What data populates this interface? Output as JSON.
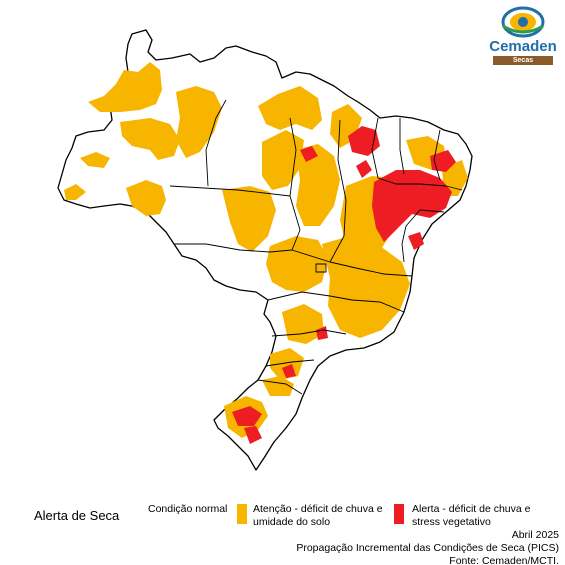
{
  "logo": {
    "name": "Cemaden",
    "subtitle": "Secas"
  },
  "legend": {
    "title": "Alerta de Seca",
    "items": [
      {
        "label": "Condição normal",
        "color": "#ffffff"
      },
      {
        "label": "Atenção - déficit de chuva e umidade do solo",
        "color": "#f7b500"
      },
      {
        "label": "Alerta - déficit de chuva e stress vegetativo",
        "color": "#ee1d23"
      }
    ]
  },
  "info": {
    "date": "Abril 2025",
    "product": "Propagação Incremental das Condições de Seca (PICS)",
    "source": "Fonte: Cemaden/MCTI."
  },
  "map": {
    "country": "Brasil",
    "border_color": "#000000"
  }
}
